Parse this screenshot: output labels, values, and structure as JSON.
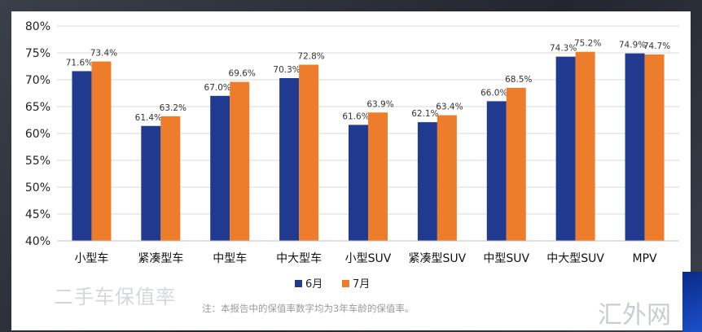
{
  "chart_data": {
    "type": "bar",
    "title": "",
    "xlabel": "",
    "ylabel": "",
    "categories": [
      "小型车",
      "紧凑型车",
      "中型车",
      "中大型车",
      "小型SUV",
      "紧凑型SUV",
      "中型SUV",
      "中大型SUV",
      "MPV"
    ],
    "series": [
      {
        "name": "6月",
        "color": "#1f3a8f",
        "values": [
          71.6,
          61.4,
          67.0,
          70.3,
          61.6,
          62.1,
          66.0,
          74.3,
          74.9
        ],
        "labels": [
          "71.6%",
          "61.4%",
          "67.0%",
          "70.3%",
          "61.6%",
          "62.1%",
          "66.0%",
          "74.3%",
          "74.9%"
        ]
      },
      {
        "name": "7月",
        "color": "#ee7d2b",
        "values": [
          73.4,
          63.2,
          69.6,
          72.8,
          63.9,
          63.4,
          68.5,
          75.2,
          74.7
        ],
        "labels": [
          "73.4%",
          "63.2%",
          "69.6%",
          "72.8%",
          "63.9%",
          "63.4%",
          "68.5%",
          "75.2%",
          "74.7%"
        ]
      }
    ],
    "ylim": [
      40,
      80
    ],
    "yticks": [
      40,
      45,
      50,
      55,
      60,
      65,
      70,
      75,
      80
    ],
    "ytick_labels": [
      "40%",
      "45%",
      "50%",
      "55%",
      "60%",
      "65%",
      "70%",
      "75%",
      "80%"
    ],
    "grid": true,
    "legend_position": "bottom-center"
  },
  "watermark_title": "二手车保值率",
  "footnote": "注：本报告中的保值率数字均为3年车龄的保值率。",
  "brand_text": "汇外网"
}
